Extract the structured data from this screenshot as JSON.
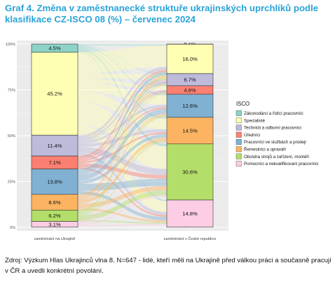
{
  "title": "Graf 4. Změna v zaměstnanecké struktuře ukrajinských uprchlíků podle klasifikace CZ-ISCO 08 (%) – červenec 2024",
  "source": "Zdroj: Výzkum Hlas Ukrajinců vlna 8. N=647 - lidé, kteří měli na Ukrajině před válkou práci a současně pracují v ČR a uvedli konkrétní povolání.",
  "chart_data": {
    "type": "alluvial",
    "title": "Graf 4. Změna v zaměstnanecké struktuře ukrajinských uprchlíků podle klasifikace CZ-ISCO 08 (%) – červenec 2024",
    "ylim": [
      0,
      100
    ],
    "yticks": [
      "0%",
      "25%",
      "50%",
      "75%",
      "100%"
    ],
    "grid": true,
    "legend_position": "right",
    "legend_title": "ISCO",
    "axes": [
      "zaměstnání na Ukrajině",
      "zaměstnání v České republice"
    ],
    "categories": [
      {
        "name": "Zákonodárci a řídící pracovníci",
        "color": "#8dd3c7"
      },
      {
        "name": "Specialisté",
        "color": "#ffffb3"
      },
      {
        "name": "Technicti a odborní pracovníci",
        "color": "#bebada"
      },
      {
        "name": "Úředníci",
        "color": "#fb8072"
      },
      {
        "name": "Pracovníci ve službách a prodeji",
        "color": "#80b1d3"
      },
      {
        "name": "Řemeslníci a opraváři",
        "color": "#fdb462"
      },
      {
        "name": "Obsluha strojů a zařízení, montéři",
        "color": "#b3de69"
      },
      {
        "name": "Pomocníci a nekvalifikovaní pracovníci",
        "color": "#fccde5"
      }
    ],
    "ukraine_values": [
      4.5,
      45.2,
      11.4,
      7.1,
      13.8,
      8.6,
      6.2,
      3.1
    ],
    "ukraine_labels": [
      "4.5%",
      "45.2%",
      "11.4%",
      "7.1%",
      "13.8%",
      "8.6%",
      "6.2%",
      "3.1%"
    ],
    "czech_values": [
      0.1,
      16.0,
      6.7,
      4.6,
      12.6,
      14.5,
      30.6,
      14.8
    ],
    "czech_labels": [
      "0.1%",
      "16.0%",
      "6.7%",
      "4.6%",
      "12.6%",
      "14.5%",
      "30.6%",
      "14.8%"
    ]
  }
}
